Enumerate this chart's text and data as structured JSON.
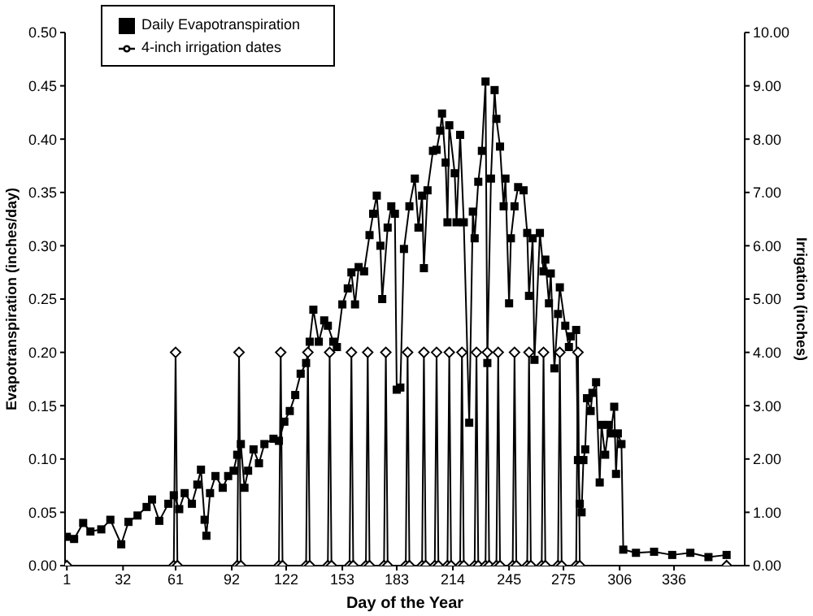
{
  "chart_data": {
    "type": "line",
    "xlabel": "Day of the Year",
    "ylabel": "Evapotranspiration (inches/day)",
    "y2label": "Irrigation (inches)",
    "xlim": [
      0,
      375
    ],
    "xticks": [
      1,
      32,
      61,
      92,
      122,
      153,
      183,
      214,
      245,
      275,
      306,
      336
    ],
    "ylim": [
      0,
      0.5
    ],
    "yticks": [
      {
        "value": 0,
        "label": "0.00"
      },
      {
        "value": 0.05,
        "label": "0.05"
      },
      {
        "value": 0.1,
        "label": "0.10"
      },
      {
        "value": 0.15,
        "label": "0.15"
      },
      {
        "value": 0.2,
        "label": "0.20"
      },
      {
        "value": 0.25,
        "label": "0.25"
      },
      {
        "value": 0.3,
        "label": "0.30"
      },
      {
        "value": 0.35,
        "label": "0.35"
      },
      {
        "value": 0.4,
        "label": "0.40"
      },
      {
        "value": 0.45,
        "label": "0.45"
      },
      {
        "value": 0.5,
        "label": "0.50"
      }
    ],
    "y2lim": [
      0,
      10
    ],
    "y2ticks": [
      {
        "value": 0,
        "label": "0.00"
      },
      {
        "value": 1,
        "label": "1.00"
      },
      {
        "value": 2,
        "label": "2.00"
      },
      {
        "value": 3,
        "label": "3.00"
      },
      {
        "value": 4,
        "label": "4.00"
      },
      {
        "value": 5,
        "label": "5.00"
      },
      {
        "value": 6,
        "label": "6.00"
      },
      {
        "value": 7,
        "label": "7.00"
      },
      {
        "value": 8,
        "label": "8.00"
      },
      {
        "value": 9,
        "label": "9.00"
      },
      {
        "value": 10,
        "label": "10.00"
      }
    ],
    "legend": "top left",
    "series": [
      {
        "name": "Daily Evapotranspiration",
        "color": "#000000",
        "marker": "square",
        "x": [
          1,
          5,
          10,
          14,
          20,
          25,
          31,
          35,
          40,
          45,
          48,
          52,
          57,
          60,
          63,
          66,
          70,
          73,
          75,
          77,
          78,
          80,
          83,
          87,
          90,
          93,
          95,
          97,
          99,
          101,
          104,
          107,
          110,
          115,
          118,
          121,
          124,
          127,
          130,
          133,
          135,
          137,
          140,
          143,
          145,
          148,
          150,
          153,
          156,
          158,
          160,
          162,
          165,
          168,
          170,
          172,
          174,
          175,
          178,
          180,
          182,
          183,
          185,
          187,
          190,
          193,
          195,
          197,
          198,
          200,
          203,
          205,
          207,
          208,
          210,
          211,
          212,
          215,
          216,
          218,
          220,
          223,
          225,
          226,
          228,
          230,
          232,
          233,
          235,
          237,
          238,
          240,
          242,
          243,
          245,
          246,
          248,
          250,
          253,
          255,
          256,
          258,
          259,
          262,
          264,
          265,
          267,
          268,
          270,
          272,
          273,
          276,
          278,
          279,
          282,
          283,
          284,
          285,
          286,
          287,
          288,
          290,
          291,
          293,
          295,
          296,
          298,
          300,
          301,
          303,
          304,
          305,
          307,
          308,
          315,
          325,
          335,
          345,
          355,
          365
        ],
        "values": [
          0.027,
          0.025,
          0.04,
          0.032,
          0.034,
          0.043,
          0.02,
          0.041,
          0.047,
          0.055,
          0.062,
          0.042,
          0.058,
          0.066,
          0.053,
          0.068,
          0.058,
          0.076,
          0.09,
          0.043,
          0.028,
          0.068,
          0.084,
          0.073,
          0.084,
          0.089,
          0.104,
          0.114,
          0.073,
          0.089,
          0.109,
          0.096,
          0.114,
          0.119,
          0.117,
          0.135,
          0.145,
          0.16,
          0.18,
          0.19,
          0.21,
          0.24,
          0.21,
          0.23,
          0.225,
          0.21,
          0.205,
          0.245,
          0.26,
          0.275,
          0.245,
          0.28,
          0.276,
          0.31,
          0.33,
          0.347,
          0.3,
          0.25,
          0.317,
          0.337,
          0.33,
          0.165,
          0.167,
          0.297,
          0.337,
          0.363,
          0.317,
          0.347,
          0.279,
          0.352,
          0.389,
          0.39,
          0.408,
          0.424,
          0.378,
          0.322,
          0.413,
          0.368,
          0.322,
          0.404,
          0.322,
          0.134,
          0.332,
          0.307,
          0.36,
          0.389,
          0.454,
          0.19,
          0.363,
          0.446,
          0.419,
          0.393,
          0.337,
          0.363,
          0.246,
          0.307,
          0.337,
          0.355,
          0.352,
          0.312,
          0.253,
          0.307,
          0.193,
          0.312,
          0.276,
          0.287,
          0.246,
          0.274,
          0.185,
          0.236,
          0.261,
          0.225,
          0.205,
          0.215,
          0.221,
          0.099,
          0.058,
          0.05,
          0.099,
          0.109,
          0.157,
          0.145,
          0.162,
          0.172,
          0.078,
          0.132,
          0.104,
          0.132,
          0.124,
          0.149,
          0.086,
          0.124,
          0.114,
          0.015,
          0.012,
          0.013,
          0.01,
          0.012,
          0.008,
          0.01
        ]
      },
      {
        "name": "4-inch irrigation dates",
        "color": "#000000",
        "marker": "diamond",
        "axis": "y2",
        "x": [
          1,
          60,
          61,
          62,
          95,
          96,
          97,
          118,
          119,
          120,
          133,
          134,
          135,
          145,
          146,
          147,
          157,
          158,
          159,
          166,
          167,
          168,
          176,
          177,
          178,
          188,
          189,
          190,
          197,
          198,
          199,
          204,
          205,
          206,
          211,
          212,
          213,
          218,
          219,
          220,
          226,
          227,
          228,
          232,
          233,
          234,
          238,
          239,
          240,
          247,
          248,
          249,
          255,
          256,
          257,
          263,
          264,
          265,
          272,
          273,
          274,
          282,
          283,
          284,
          365
        ],
        "values": [
          0,
          0,
          4,
          0,
          0,
          4,
          0,
          0,
          4,
          0,
          0,
          4,
          0,
          0,
          4,
          0,
          0,
          4,
          0,
          0,
          4,
          0,
          0,
          4,
          0,
          0,
          4,
          0,
          0,
          4,
          0,
          0,
          4,
          0,
          0,
          4,
          0,
          0,
          4,
          0,
          0,
          4,
          0,
          0,
          4,
          0,
          0,
          4,
          0,
          0,
          4,
          0,
          0,
          4,
          0,
          0,
          4,
          0,
          0,
          4,
          0,
          0,
          4,
          0,
          0
        ]
      }
    ]
  }
}
